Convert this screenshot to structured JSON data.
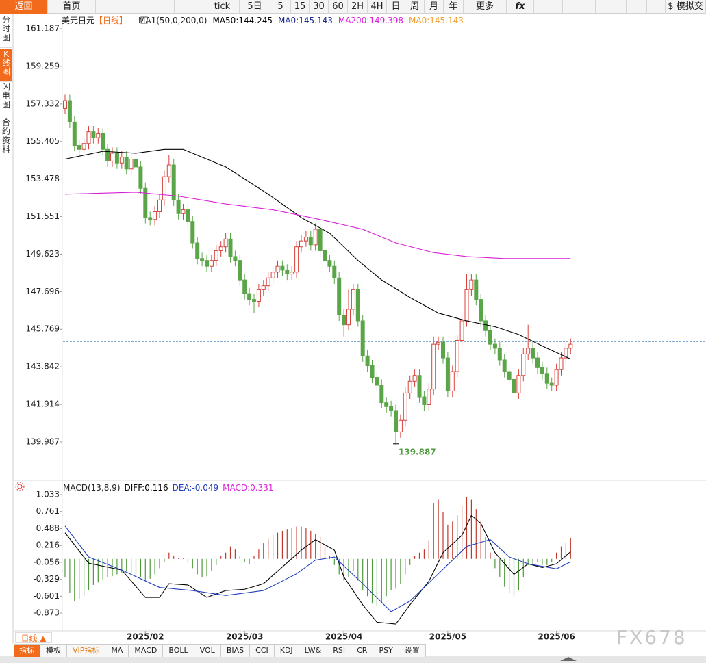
{
  "ui": {
    "toolbar": [
      "返回",
      "首页",
      "tick",
      "5日",
      "5",
      "15",
      "30",
      "60",
      "2H",
      "4H",
      "日",
      "周",
      "月",
      "年",
      "更多",
      "fx",
      "$ 模拟交"
    ],
    "sidebar": [
      "分时图",
      "K线图",
      "闪电图",
      "合约资料"
    ],
    "period_selector": "日线 ▲",
    "tabs": [
      "指标",
      "模板",
      "VIP指标",
      "MA",
      "MACD",
      "BOLL",
      "VOL",
      "BIAS",
      "CCI",
      "KDJ",
      "LW&",
      "RSI",
      "CR",
      "PSY",
      "设置"
    ],
    "watermark": "FX678"
  },
  "chart_data": [
    {
      "type": "candlestick",
      "symbol": "美元日元",
      "period": "【日线】",
      "indicator": "MA1(50,0,200,0)",
      "up_color": "#d9413b",
      "down_color": "#5aa548",
      "ylim": [
        138.09,
        161.96
      ],
      "yticks": [
        161.187,
        159.259,
        157.332,
        155.405,
        153.478,
        151.551,
        149.623,
        147.696,
        145.769,
        143.842,
        141.914,
        139.987
      ],
      "open": [
        157.1,
        157.5,
        156.4,
        155.2,
        155.0,
        155.3,
        155.9,
        155.6,
        155.8,
        155.0,
        154.4,
        154.8,
        154.3,
        154.6,
        154.0,
        154.5,
        154.1,
        153.0,
        151.5,
        151.4,
        151.8,
        152.4,
        153.6,
        154.2,
        152.4,
        151.7,
        151.9,
        151.3,
        150.2,
        149.4,
        149.3,
        149.0,
        149.3,
        149.8,
        150.0,
        150.4,
        149.5,
        149.3,
        148.3,
        147.6,
        147.3,
        147.2,
        147.8,
        148.0,
        148.4,
        148.7,
        149.0,
        148.8,
        148.6,
        148.7,
        150.0,
        150.3,
        150.5,
        150.1,
        150.9,
        149.8,
        149.3,
        149.0,
        148.4,
        146.5,
        146.0,
        146.8,
        147.8,
        146.2,
        144.4,
        143.9,
        143.3,
        142.9,
        142.0,
        141.8,
        141.6,
        140.5,
        141.1,
        142.5,
        143.1,
        143.4,
        142.3,
        141.9,
        142.7,
        145.0,
        145.1,
        144.3,
        142.6,
        143.6,
        145.2,
        146.2,
        147.8,
        148.3,
        147.3,
        146.2,
        145.7,
        145.0,
        144.8,
        144.2,
        143.6,
        143.2,
        142.5,
        143.4,
        144.5,
        144.8,
        144.3,
        143.8,
        143.5,
        143.0,
        142.9,
        143.7,
        144.3,
        144.8
      ],
      "high": [
        157.8,
        157.8,
        156.7,
        155.5,
        155.6,
        156.2,
        156.2,
        156.1,
        156.1,
        155.3,
        155.1,
        155.1,
        154.9,
        154.9,
        154.8,
        154.8,
        154.4,
        153.3,
        151.8,
        152.1,
        152.7,
        153.9,
        154.7,
        154.5,
        152.7,
        152.2,
        152.2,
        151.6,
        150.5,
        149.7,
        149.6,
        149.6,
        150.1,
        150.3,
        150.7,
        150.7,
        149.8,
        149.6,
        148.6,
        147.9,
        147.6,
        148.1,
        148.3,
        148.7,
        149.0,
        149.3,
        149.3,
        149.1,
        149.0,
        150.3,
        150.6,
        150.8,
        150.8,
        151.2,
        151.2,
        150.1,
        149.6,
        149.3,
        148.7,
        146.8,
        147.8,
        148.1,
        148.1,
        146.5,
        144.7,
        144.2,
        143.6,
        143.2,
        142.3,
        142.1,
        141.9,
        141.4,
        142.8,
        143.4,
        143.7,
        143.7,
        142.6,
        143.0,
        145.4,
        145.4,
        145.4,
        144.6,
        143.9,
        145.5,
        146.5,
        148.6,
        148.6,
        148.6,
        147.6,
        146.5,
        146.0,
        145.3,
        145.1,
        144.5,
        143.9,
        143.5,
        143.7,
        144.8,
        146.0,
        145.1,
        144.6,
        144.1,
        143.8,
        143.3,
        144.0,
        144.6,
        145.1,
        145.3
      ],
      "low": [
        156.8,
        156.1,
        154.9,
        154.7,
        154.7,
        155.0,
        155.3,
        155.3,
        154.7,
        154.1,
        154.1,
        154.0,
        154.0,
        153.7,
        153.7,
        153.8,
        152.7,
        151.2,
        151.1,
        151.1,
        151.5,
        152.1,
        153.3,
        152.1,
        151.4,
        151.4,
        151.0,
        149.9,
        149.1,
        149.0,
        148.7,
        148.7,
        149.0,
        149.5,
        149.7,
        149.2,
        149.0,
        148.0,
        147.3,
        147.0,
        146.6,
        146.9,
        147.5,
        147.7,
        148.1,
        148.4,
        148.5,
        148.3,
        148.3,
        148.4,
        149.7,
        150.0,
        149.8,
        149.8,
        149.5,
        149.0,
        148.7,
        148.1,
        146.2,
        145.4,
        145.7,
        146.5,
        145.9,
        144.1,
        143.6,
        143.0,
        142.6,
        141.7,
        141.5,
        141.3,
        139.887,
        140.2,
        140.8,
        142.2,
        142.8,
        142.0,
        141.6,
        141.6,
        142.4,
        144.7,
        144.0,
        142.3,
        142.3,
        143.3,
        144.9,
        145.9,
        147.5,
        147.0,
        145.9,
        145.4,
        144.7,
        144.5,
        143.9,
        143.3,
        142.9,
        142.2,
        142.2,
        143.1,
        144.2,
        144.0,
        143.5,
        143.2,
        142.7,
        142.6,
        142.6,
        143.4,
        144.0,
        144.5
      ],
      "close": [
        157.5,
        156.4,
        155.2,
        155.0,
        155.3,
        155.9,
        155.6,
        155.8,
        155.0,
        154.4,
        154.8,
        154.3,
        154.6,
        154.0,
        154.5,
        154.1,
        153.0,
        151.5,
        151.4,
        151.8,
        152.4,
        153.6,
        154.2,
        152.4,
        151.7,
        151.9,
        151.3,
        150.2,
        149.4,
        149.3,
        149.0,
        149.3,
        149.8,
        150.0,
        150.4,
        149.5,
        149.3,
        148.3,
        147.6,
        147.3,
        147.2,
        147.8,
        148.0,
        148.4,
        148.7,
        149.0,
        148.8,
        148.6,
        148.7,
        150.0,
        150.3,
        150.5,
        150.1,
        150.9,
        149.8,
        149.3,
        149.0,
        148.4,
        146.5,
        146.0,
        146.8,
        147.8,
        146.2,
        144.4,
        143.9,
        143.3,
        142.9,
        142.0,
        141.8,
        141.6,
        140.5,
        141.1,
        142.5,
        143.1,
        143.4,
        142.3,
        141.9,
        142.7,
        145.0,
        145.1,
        144.3,
        142.6,
        143.6,
        145.2,
        146.2,
        147.8,
        148.3,
        147.3,
        146.2,
        145.7,
        145.0,
        144.8,
        144.2,
        143.6,
        143.2,
        142.5,
        143.4,
        144.5,
        144.8,
        144.3,
        143.8,
        143.5,
        143.0,
        142.9,
        143.7,
        144.3,
        144.8,
        145.0
      ],
      "series": [
        {
          "name": "MA50:",
          "value": 144.245,
          "color": "#000000",
          "x": [
            0,
            8,
            15,
            21,
            25,
            34,
            43,
            50,
            56,
            62,
            67,
            73,
            79,
            85,
            91,
            96,
            102,
            107
          ],
          "values": [
            154.5,
            154.9,
            154.8,
            155.0,
            155.0,
            154.1,
            152.7,
            151.5,
            150.7,
            149.3,
            148.3,
            147.4,
            146.6,
            146.2,
            145.9,
            145.5,
            144.8,
            144.245
          ]
        },
        {
          "name": "MA0:",
          "value": 145.143,
          "color": "#1a2a8c",
          "hline": true
        },
        {
          "name": "MA200:",
          "value": 149.398,
          "color": "#d81fd8",
          "x": [
            0,
            15,
            24,
            34,
            44,
            54,
            63,
            70,
            78,
            85,
            93,
            107
          ],
          "values": [
            152.7,
            152.8,
            152.6,
            152.2,
            151.9,
            151.4,
            150.9,
            150.2,
            149.7,
            149.5,
            149.4,
            149.398
          ]
        },
        {
          "name": "MA0:",
          "value": 145.143,
          "color": "#f0a030"
        }
      ]
    },
    {
      "type": "bar",
      "title": "MACD(13,8,9)",
      "up_color": "#c0392b",
      "down_color": "#4f9a3c",
      "ylim": [
        -1.159,
        1.154
      ],
      "yticks": [
        1.033,
        0.761,
        0.488,
        0.216,
        -0.056,
        -0.329,
        -0.601,
        -0.873
      ],
      "xticks": [
        {
          "value": 17,
          "label": "2025/02"
        },
        {
          "value": 38,
          "label": "2025/03"
        },
        {
          "value": 59,
          "label": "2025/04"
        },
        {
          "value": 81,
          "label": "2025/05"
        },
        {
          "value": 104,
          "label": "2025/06"
        }
      ],
      "values": [
        -0.3,
        -0.55,
        -0.68,
        -0.65,
        -0.6,
        -0.5,
        -0.42,
        -0.38,
        -0.33,
        -0.3,
        -0.28,
        -0.25,
        -0.22,
        -0.2,
        -0.22,
        -0.25,
        -0.3,
        -0.35,
        -0.32,
        -0.25,
        -0.15,
        -0.05,
        0.1,
        0.05,
        0.02,
        0.01,
        -0.05,
        -0.15,
        -0.25,
        -0.3,
        -0.28,
        -0.2,
        -0.1,
        0.05,
        0.1,
        0.2,
        0.15,
        0.05,
        -0.05,
        -0.08,
        0.05,
        0.15,
        0.25,
        0.32,
        0.38,
        0.42,
        0.45,
        0.48,
        0.5,
        0.52,
        0.52,
        0.5,
        0.45,
        0.4,
        0.35,
        0.2,
        0.05,
        -0.1,
        -0.25,
        -0.35,
        -0.3,
        -0.2,
        -0.35,
        -0.5,
        -0.6,
        -0.72,
        -0.75,
        -0.7,
        -0.6,
        -0.5,
        -0.48,
        -0.4,
        -0.25,
        -0.1,
        0.05,
        0.1,
        0.15,
        0.3,
        0.9,
        0.95,
        0.75,
        0.55,
        0.6,
        0.7,
        0.85,
        1.0,
        0.95,
        0.8,
        0.6,
        0.35,
        0.1,
        -0.15,
        -0.3,
        -0.45,
        -0.55,
        -0.6,
        -0.5,
        -0.3,
        -0.1,
        -0.08,
        -0.05,
        -0.1,
        -0.1,
        -0.05,
        0.1,
        0.2,
        0.25,
        0.331
      ],
      "series": [
        {
          "name": "DIFF:",
          "value": 0.116,
          "color": "#000000",
          "x": [
            0,
            5,
            12,
            17,
            20,
            22,
            26,
            30,
            34,
            38,
            42,
            46,
            50,
            53,
            57,
            59,
            63,
            66,
            70,
            73,
            77,
            80,
            84,
            86,
            88,
            91,
            95,
            98,
            101,
            104,
            107
          ],
          "values": [
            0.42,
            -0.07,
            -0.18,
            -0.62,
            -0.62,
            -0.4,
            -0.42,
            -0.62,
            -0.51,
            -0.49,
            -0.4,
            -0.13,
            0.14,
            0.31,
            0.14,
            -0.29,
            -0.74,
            -1.02,
            -1.05,
            -0.74,
            -0.36,
            0.1,
            0.38,
            0.7,
            0.57,
            0.1,
            -0.25,
            -0.08,
            -0.14,
            -0.08,
            0.116
          ]
        },
        {
          "name": "DEA:",
          "value": -0.049,
          "color": "#1f3fbf",
          "x": [
            0,
            5,
            12,
            20,
            27,
            34,
            42,
            49,
            53,
            57,
            63,
            69,
            73,
            79,
            85,
            90,
            94,
            98,
            104,
            107
          ],
          "values": [
            0.53,
            0.03,
            -0.18,
            -0.46,
            -0.51,
            -0.59,
            -0.51,
            -0.24,
            -0.02,
            0.03,
            -0.4,
            -0.85,
            -0.68,
            -0.24,
            0.2,
            0.31,
            0.03,
            -0.08,
            -0.16,
            -0.049
          ]
        },
        {
          "name": "MACD:",
          "value": 0.331,
          "color": "#d81fd8"
        }
      ]
    }
  ]
}
